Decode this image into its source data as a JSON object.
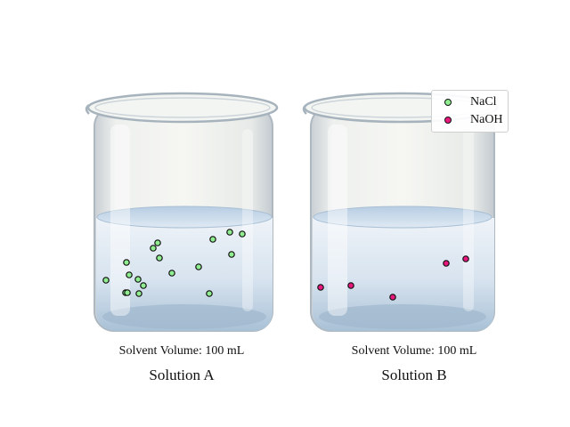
{
  "legend": {
    "items": [
      {
        "label": "NaCl",
        "color": "#90ee90"
      },
      {
        "label": "NaOH",
        "color": "#e8197c"
      }
    ]
  },
  "beakers": [
    {
      "volume_label": "Solvent Volume: 100 mL",
      "name": "Solution A",
      "solute": "NaCl",
      "particle_count": 18
    },
    {
      "volume_label": "Solvent Volume: 100 mL",
      "name": "Solution B",
      "solute": "NaOH",
      "particle_count": 5
    }
  ]
}
